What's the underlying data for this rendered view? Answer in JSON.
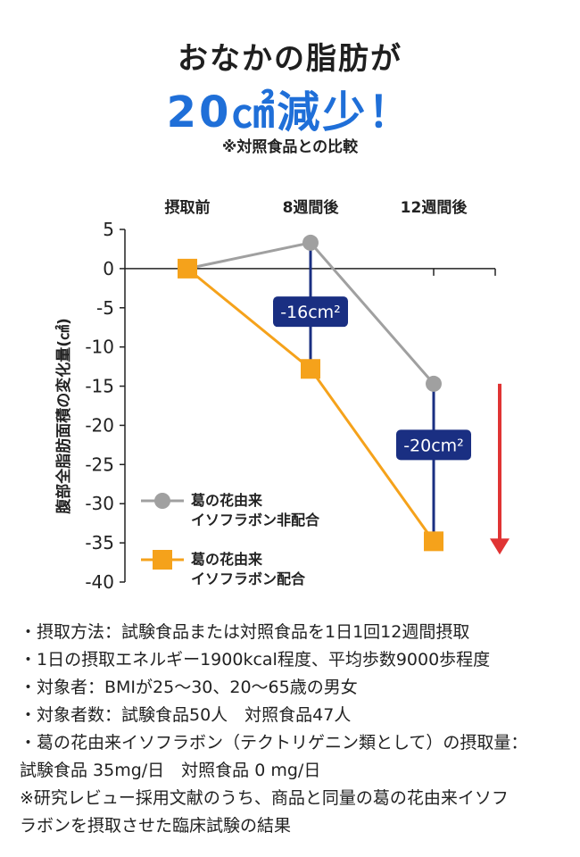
{
  "headline": {
    "line1": "おなかの脂肪が",
    "line2_value": "20",
    "line2_unit": "㎠",
    "line2_rest": "減少！",
    "subnote": "※対照食品との比較",
    "accent_color": "#1f6fd8"
  },
  "chart_data": {
    "type": "line",
    "categories": [
      "摂取前",
      "8週間後",
      "12週間後"
    ],
    "ylabel": "腹部全脂肪面積の変化量(㎠)",
    "ylim": [
      -40,
      5
    ],
    "yticks": [
      5,
      0,
      -5,
      -10,
      -15,
      -20,
      -25,
      -30,
      -35,
      -40
    ],
    "series": [
      {
        "name": "葛の花由来 イソフラボン非配合",
        "name_lines": [
          "葛の花由来",
          "イソフラボン非配合"
        ],
        "values": [
          0,
          3.3,
          -14.7
        ],
        "color": "#a0a0a0",
        "marker": "circle"
      },
      {
        "name": "葛の花由来 イソフラボン配合",
        "name_lines": [
          "葛の花由来",
          "イソフラボン配合"
        ],
        "values": [
          0,
          -12.8,
          -34.8
        ],
        "color": "#f5a21b",
        "marker": "square"
      }
    ],
    "differences": [
      {
        "category": "8週間後",
        "label": "-16cm²",
        "from": 3.3,
        "to": -12.8,
        "label_y": -5.5
      },
      {
        "category": "12週間後",
        "label": "-20cm²",
        "from": -14.7,
        "to": -34.8,
        "label_y": -22.5
      }
    ],
    "diff_color": "#1a2f82",
    "arrow_color": "#e03434",
    "arrow": {
      "from": -14.7,
      "to": -36.5
    }
  },
  "notes": [
    "・摂取方法：試験食品または対照食品を1日1回12週間摂取",
    "・1日の摂取エネルギー1900kcal程度、平均歩数9000歩程度",
    "・対象者：BMIが25〜30、20〜65歳の男女",
    "・対象者数：試験食品50人　対照食品47人",
    "・葛の花由来イソフラボン（テクトリゲニン類として）の摂取量：",
    "試験食品 35mg/日　対照食品 0 mg/日",
    "※研究レビュー採用文献のうち、商品と同量の葛の花由来イソフ",
    "ラボンを摂取させた臨床試験の結果"
  ]
}
